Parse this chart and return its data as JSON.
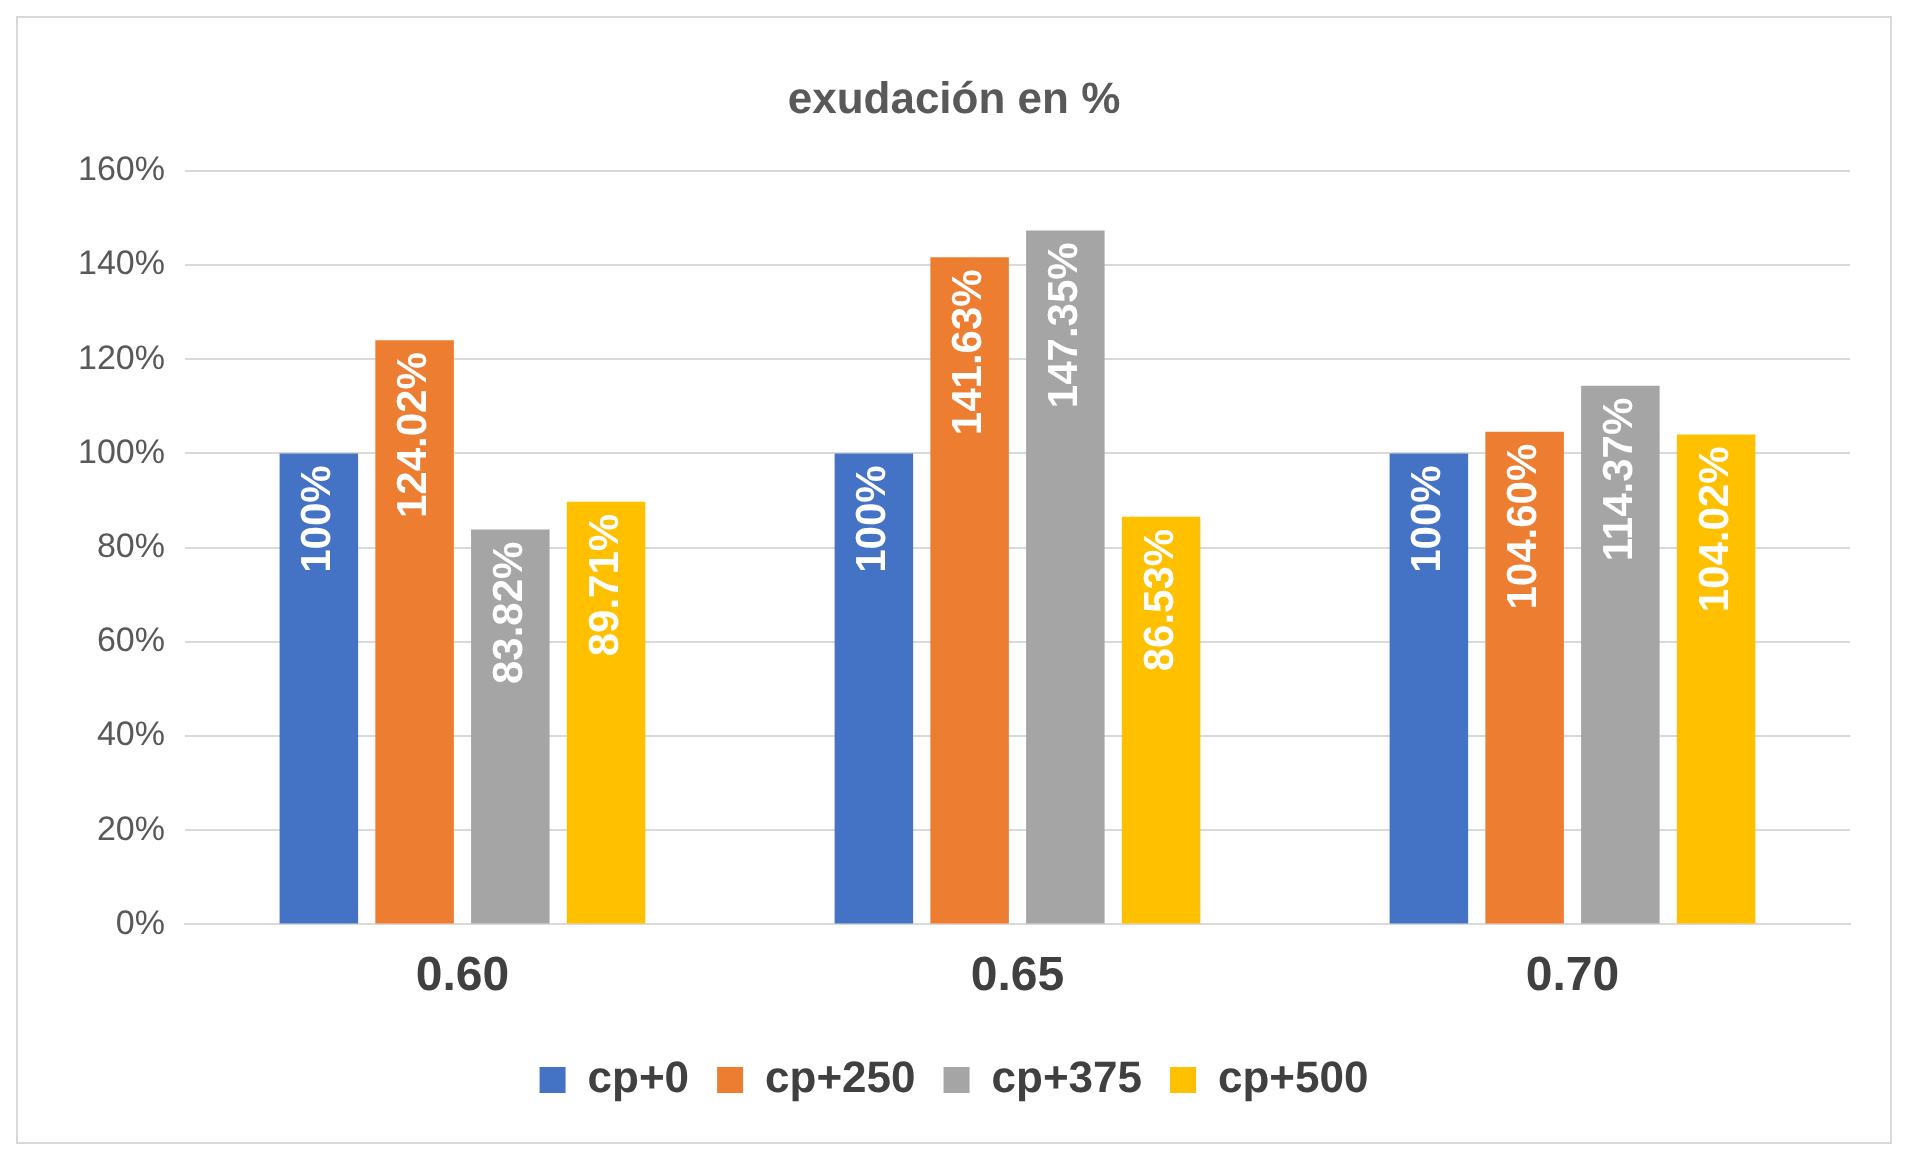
{
  "chart_data": {
    "type": "bar",
    "title": "exudación en %",
    "categories": [
      "0.60",
      "0.65",
      "0.70"
    ],
    "series": [
      {
        "name": "cp+0",
        "color": "#4472c4",
        "values": [
          100,
          100,
          100
        ],
        "value_labels": [
          "100%",
          "100%",
          "100%"
        ]
      },
      {
        "name": "cp+250",
        "color": "#ed7d31",
        "values": [
          124.02,
          141.63,
          104.6
        ],
        "value_labels": [
          "124.02%",
          "141.63%",
          "104.60%"
        ]
      },
      {
        "name": "cp+375",
        "color": "#a5a5a5",
        "values": [
          83.82,
          147.35,
          114.37
        ],
        "value_labels": [
          "83.82%",
          "147.35%",
          "114.37%"
        ]
      },
      {
        "name": "cp+500",
        "color": "#ffc000",
        "values": [
          89.71,
          86.53,
          104.02
        ],
        "value_labels": [
          "89.71%",
          "86.53%",
          "104.02%"
        ]
      }
    ],
    "ylim": [
      0,
      160
    ],
    "yticks": [
      {
        "value": 0,
        "label": "0%"
      },
      {
        "value": 20,
        "label": "20%"
      },
      {
        "value": 40,
        "label": "40%"
      },
      {
        "value": 60,
        "label": "60%"
      },
      {
        "value": 80,
        "label": "80%"
      },
      {
        "value": 100,
        "label": "100%"
      },
      {
        "value": 120,
        "label": "120%"
      },
      {
        "value": 140,
        "label": "140%"
      },
      {
        "value": 160,
        "label": "160%"
      }
    ],
    "grid": "y",
    "legend": "bottom"
  }
}
